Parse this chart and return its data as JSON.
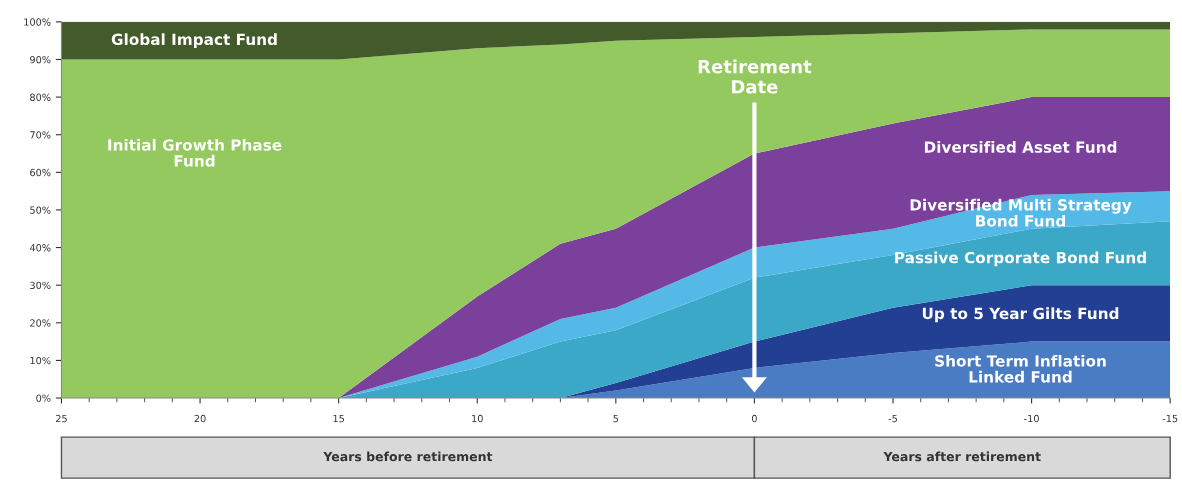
{
  "chart_data": {
    "type": "area",
    "stacked": true,
    "x": [
      25,
      15,
      10,
      7,
      5,
      0,
      -5,
      -10,
      -15
    ],
    "xlim": [
      25,
      -15
    ],
    "xticks": [
      25,
      20,
      15,
      10,
      5,
      0,
      -5,
      -10,
      -15
    ],
    "ylim": [
      0,
      100
    ],
    "yticks": [
      {
        "value": 0,
        "label": "0%"
      },
      {
        "value": 10,
        "label": "10%"
      },
      {
        "value": 20,
        "label": "20%"
      },
      {
        "value": 30,
        "label": "30%"
      },
      {
        "value": 40,
        "label": "40%"
      },
      {
        "value": 50,
        "label": "50%"
      },
      {
        "value": 60,
        "label": "60%"
      },
      {
        "value": 70,
        "label": "70%"
      },
      {
        "value": 80,
        "label": "80%"
      },
      {
        "value": 90,
        "label": "90%"
      },
      {
        "value": 100,
        "label": "100%"
      }
    ],
    "series": [
      {
        "name": "Short Term Inflation\nLinked Fund",
        "color": "#4a7cc4",
        "values": [
          0,
          0,
          0,
          0,
          2,
          8,
          12,
          15,
          15
        ]
      },
      {
        "name": "Up to 5 Year Gilts Fund",
        "color": "#223f93",
        "values": [
          0,
          0,
          0,
          0,
          2,
          7,
          12,
          15,
          15
        ]
      },
      {
        "name": "Passive Corporate Bond Fund",
        "color": "#3aa8c6",
        "values": [
          0,
          0,
          8,
          15,
          14,
          17,
          14,
          15,
          17
        ]
      },
      {
        "name": "Diversified Multi Strategy\nBond Fund",
        "color": "#55b9e8",
        "values": [
          0,
          0,
          3,
          6,
          6,
          8,
          7,
          9,
          8
        ]
      },
      {
        "name": "Diversified Asset Fund",
        "color": "#7a409c",
        "values": [
          0,
          0,
          16,
          20,
          21,
          25,
          28,
          26,
          25
        ]
      },
      {
        "name": "Initial Growth Phase\nFund",
        "color": "#93c95f",
        "values": [
          90,
          90,
          66,
          53,
          50,
          31,
          24,
          18,
          18
        ]
      },
      {
        "name": "Global Impact Fund",
        "color": "#435a2a",
        "values": [
          10,
          10,
          7,
          6,
          5,
          4,
          3,
          2,
          2
        ]
      }
    ],
    "ref_lines": [
      {
        "axis": "x",
        "value": 0,
        "label": "Retirement\nDate",
        "color": "#ffffff"
      }
    ],
    "annotations": [
      "Years before retirement",
      "Years after retirement"
    ],
    "grid": false,
    "legend": false
  }
}
